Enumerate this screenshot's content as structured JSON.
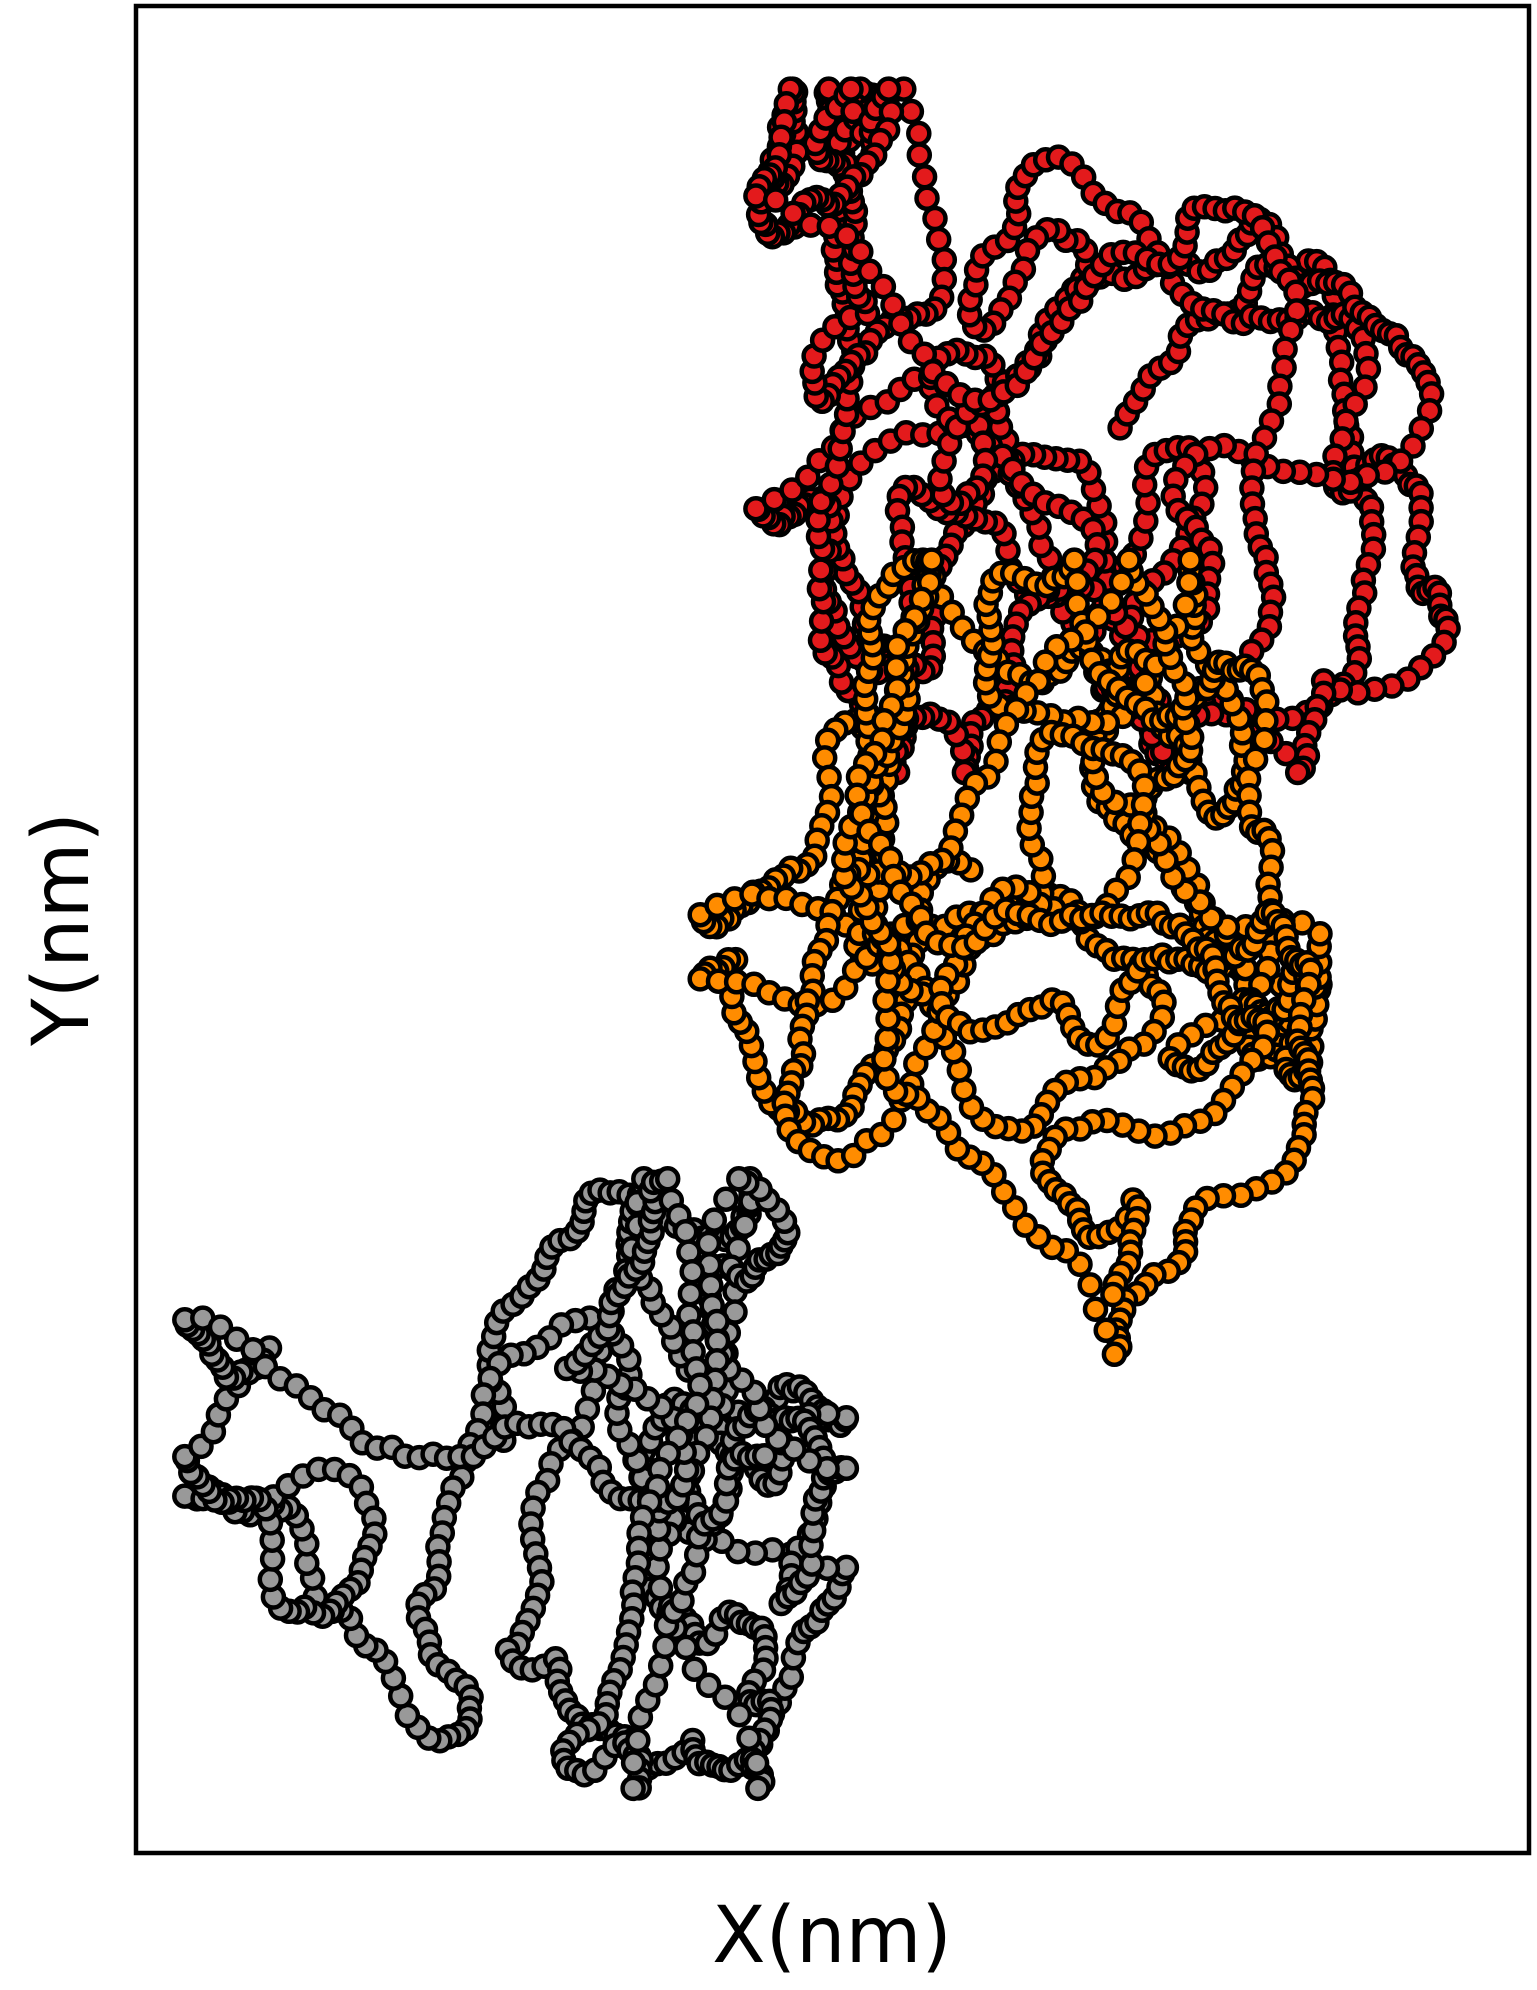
{
  "chart_data": {
    "type": "scatter",
    "xlabel": "X(nm)",
    "ylabel": "Y(nm)",
    "xlim": [
      0,
      100
    ],
    "ylim": [
      0,
      100
    ],
    "grid": false,
    "ticks": false,
    "legend": "none",
    "marker": {
      "shape": "circle",
      "edge_color": "#000000",
      "style": "connected bead chains"
    },
    "series": [
      {
        "color": "#e31a1c",
        "points": 900,
        "center": [
          70.0,
          76.5
        ],
        "spread": [
          7.0,
          9.2
        ],
        "extent": {
          "x": [
            44.5,
            96.0
          ],
          "y": [
            58.5,
            95.5
          ]
        }
      },
      {
        "color": "#ff8c00",
        "points": 900,
        "center": [
          60.5,
          52.5
        ],
        "spread": [
          6.6,
          8.4
        ],
        "extent": {
          "x": [
            40.5,
            85.0
          ],
          "y": [
            27.0,
            70.0
          ]
        }
      },
      {
        "color": "#999999",
        "points": 700,
        "center": [
          26.0,
          21.5
        ],
        "spread": [
          7.4,
          5.6
        ],
        "extent": {
          "x": [
            3.5,
            51.0
          ],
          "y": [
            3.5,
            36.5
          ]
        }
      }
    ]
  }
}
